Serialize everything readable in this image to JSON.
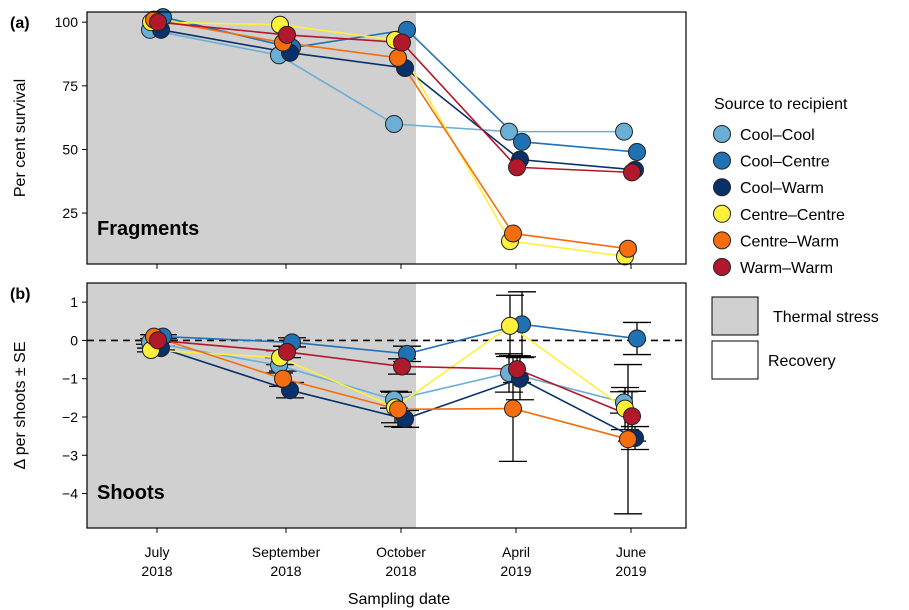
{
  "chart_data": [
    {
      "panel_label": "(a)",
      "type": "line",
      "ylabel": "Per cent  survival",
      "panel_text": "Fragments",
      "categories": [
        "July\n2018",
        "September\n2018",
        "October\n2018",
        "April\n2019",
        "June\n2019"
      ],
      "y_ticks": [
        "25",
        "50",
        "75",
        "100"
      ],
      "ylim": [
        5,
        104
      ],
      "shaded_categories": [
        "July\n2018",
        "September\n2018",
        "October\n2018"
      ],
      "series": [
        {
          "name": "Cool–Cool",
          "color": "#6BAED6",
          "values": [
            97,
            87,
            60,
            57,
            57
          ]
        },
        {
          "name": "Cool–Centre",
          "color": "#2171B5",
          "values": [
            102,
            90,
            97,
            53,
            49
          ]
        },
        {
          "name": "Cool–Warm",
          "color": "#08306B",
          "values": [
            97,
            88,
            82,
            46,
            42
          ]
        },
        {
          "name": "Centre–Centre",
          "color": "#FFF03C",
          "values": [
            100,
            99,
            93,
            14,
            8
          ]
        },
        {
          "name": "Centre–Warm",
          "color": "#F46D0F",
          "values": [
            101,
            92,
            86,
            17,
            11
          ]
        },
        {
          "name": "Warm–Warm",
          "color": "#B2182B",
          "values": [
            100,
            95,
            92,
            43,
            41
          ]
        }
      ]
    },
    {
      "panel_label": "(b)",
      "type": "line",
      "ylabel": "Δ per shoots ± SE",
      "xlabel": "Sampling date",
      "panel_text": "Shoots",
      "categories": [
        "July\n2018",
        "September\n2018",
        "October\n2018",
        "April\n2019",
        "June\n2019"
      ],
      "y_ticks": [
        "−4",
        "−3",
        "−2",
        "−1",
        "0",
        "1"
      ],
      "ylim": [
        -4.9,
        1.5
      ],
      "reference_line": 0,
      "shaded_categories": [
        "July\n2018",
        "September\n2018",
        "October\n2018"
      ],
      "series": [
        {
          "name": "Cool–Cool",
          "color": "#6BAED6",
          "values": [
            -0.05,
            -0.65,
            -1.55,
            -0.85,
            -1.62
          ],
          "se": [
            0.05,
            0.2,
            0.22,
            0.5,
            0.28
          ]
        },
        {
          "name": "Cool–Centre",
          "color": "#2171B5",
          "values": [
            0.1,
            -0.05,
            -0.35,
            0.42,
            0.05
          ],
          "se": [
            0.05,
            0.12,
            0.2,
            0.85,
            0.42
          ]
        },
        {
          "name": "Cool–Warm",
          "color": "#08306B",
          "values": [
            -0.2,
            -1.3,
            -2.05,
            -1.0,
            -2.55
          ],
          "se": [
            0.05,
            0.2,
            0.22,
            0.55,
            0.3
          ]
        },
        {
          "name": "Centre–Centre",
          "color": "#FFF03C",
          "values": [
            -0.25,
            -0.45,
            -1.75,
            0.38,
            -1.78
          ],
          "se": [
            0.05,
            0.18,
            0.4,
            0.8,
            0.55
          ]
        },
        {
          "name": "Centre–Warm",
          "color": "#F46D0F",
          "values": [
            0.1,
            -1.0,
            -1.8,
            -1.78,
            -2.58
          ],
          "se": [
            0.05,
            0.2,
            0.45,
            1.38,
            1.95
          ]
        },
        {
          "name": "Warm–Warm",
          "color": "#B2182B",
          "values": [
            0.0,
            -0.3,
            -0.68,
            -0.75,
            -1.98
          ],
          "se": [
            0.05,
            0.15,
            0.2,
            0.35,
            0.65
          ]
        }
      ]
    }
  ],
  "legend": {
    "title": "Source to recipient",
    "placement": "right",
    "entries": [
      {
        "label": "Cool–Cool",
        "color": "#6BAED6"
      },
      {
        "label": "Cool–Centre",
        "color": "#2171B5"
      },
      {
        "label": "Cool–Warm",
        "color": "#08306B"
      },
      {
        "label": "Centre–Centre",
        "color": "#FFF03C"
      },
      {
        "label": "Centre–Warm",
        "color": "#F46D0F"
      },
      {
        "label": "Warm–Warm",
        "color": "#B2182B"
      }
    ],
    "period_entries": [
      {
        "label": "Thermal stress",
        "color": "#D0D0D0"
      },
      {
        "label": "Recovery",
        "color": "#FFFFFF"
      }
    ]
  }
}
